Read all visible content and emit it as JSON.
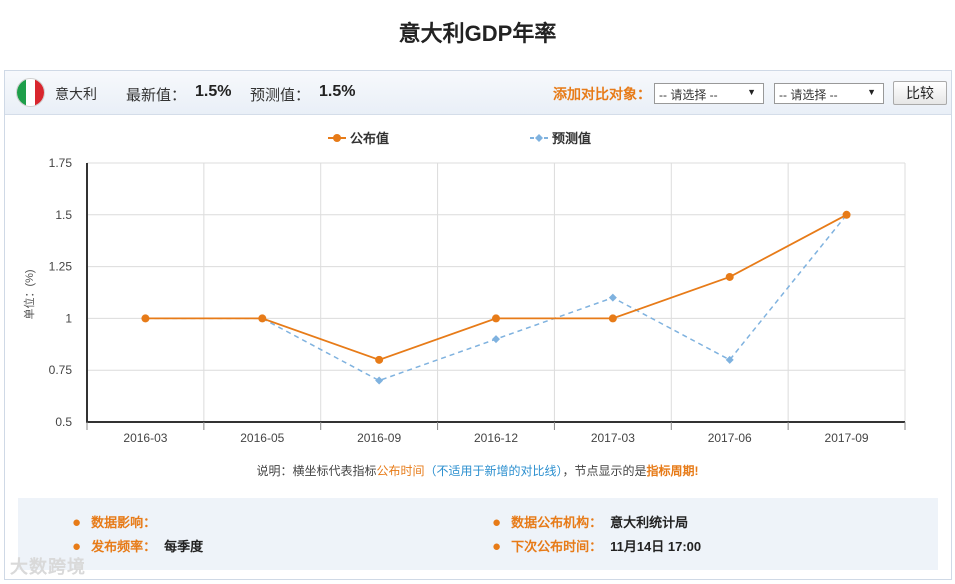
{
  "title": "意大利GDP年率",
  "header": {
    "country": "意大利",
    "latest_label": "最新值：",
    "latest_value": "1.5%",
    "forecast_label": "预测值：",
    "forecast_value": "1.5%",
    "compare_label": "添加对比对象：",
    "select1": "-- 请选择 --",
    "select2": "-- 请选择 --",
    "compare_button": "比较",
    "flag_colors": [
      "#1e9e4a",
      "#ffffff",
      "#d8262e"
    ]
  },
  "chart_data": {
    "type": "line",
    "categories": [
      "2016-03",
      "2016-05",
      "2016-09",
      "2016-12",
      "2017-03",
      "2017-06",
      "2017-09"
    ],
    "series": [
      {
        "name": "公布值",
        "values": [
          1,
          1,
          0.8,
          1,
          1,
          1.2,
          1.5
        ],
        "color": "#e77b18",
        "dashed": false
      },
      {
        "name": "预测值",
        "values": [
          1,
          1,
          0.7,
          0.9,
          1.1,
          0.8,
          1.5
        ],
        "color": "#7fb2df",
        "dashed": true
      }
    ],
    "ylabel": "单位：(%)",
    "ylim": [
      0.5,
      1.75
    ],
    "yticks": [
      0.5,
      0.75,
      1,
      1.25,
      1.5,
      1.75
    ],
    "ytick_labels": [
      "0.5",
      "0.75",
      "1",
      "1.25",
      "1.5",
      "1.75"
    ],
    "legend_position": "top-center",
    "grid": true
  },
  "note": {
    "prefix": "说明：横坐标代表指标",
    "publish_time": "公布时间",
    "paren": "（不适用于新增的对比线）",
    "middle": "，节点显示的是",
    "period": "指标周期",
    "suffix": "!"
  },
  "info": {
    "impact_label": "数据影响：",
    "impact_value": "",
    "frequency_label": "发布频率：",
    "frequency_value": "每季度",
    "agency_label": "数据公布机构：",
    "agency_value": "意大利统计局",
    "next_label": "下次公布时间：",
    "next_value": "11月14日 17:00"
  },
  "watermark": "大数跨境"
}
